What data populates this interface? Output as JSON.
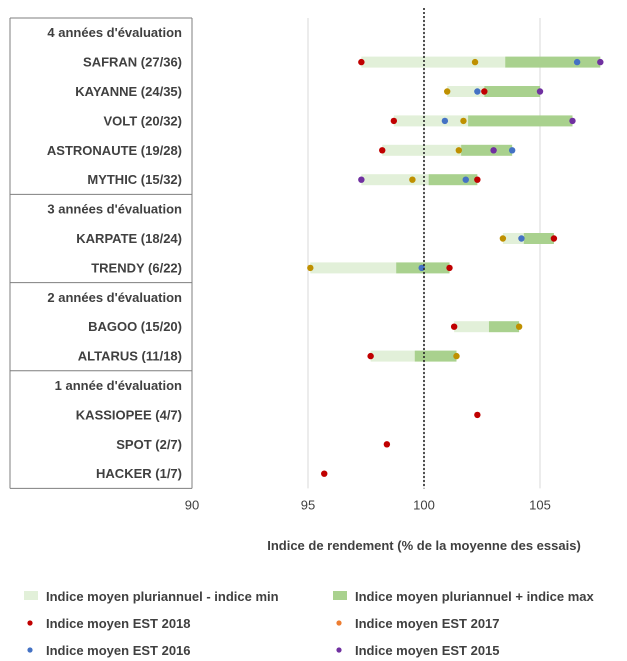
{
  "chart_data": {
    "type": "range-dot",
    "xlabel": "Indice de rendement (% de la moyenne des essais)",
    "xlim": [
      90,
      108
    ],
    "xticks": [
      90,
      95,
      100,
      105
    ],
    "reference_line": 100,
    "grid": "vertical",
    "legend_position": "bottom",
    "colors": {
      "band_min": "#e2f0d9",
      "band_max": "#a9d18e",
      "est2018": "#c00000",
      "est2017": "#bf9000",
      "est2016": "#4472c4",
      "est2015": "#7030a0",
      "est2017_legend": "#ed7d31"
    },
    "legend": [
      {
        "key": "band_min",
        "label": "Indice moyen pluriannuel - indice min"
      },
      {
        "key": "band_max",
        "label": "Indice moyen pluriannuel + indice max"
      },
      {
        "key": "est2018",
        "label": "Indice moyen EST 2018"
      },
      {
        "key": "est2017",
        "label": "Indice moyen EST 2017"
      },
      {
        "key": "est2016",
        "label": "Indice moyen EST  2016"
      },
      {
        "key": "est2015",
        "label": "Indice moyen EST 2015"
      }
    ],
    "groups": [
      {
        "label": "4 années d'évaluation",
        "rows": [
          {
            "label": "SAFRAN (27/36)",
            "min": 97.3,
            "mean": 103.5,
            "max": 107.6,
            "est2018": 97.3,
            "est2017": 102.2,
            "est2016": 106.6,
            "est2015": 107.6
          },
          {
            "label": "KAYANNE (24/35)",
            "min": 101.0,
            "mean": 102.6,
            "max": 105.0,
            "est2018": 102.6,
            "est2017": 101.0,
            "est2016": 102.3,
            "est2015": 105.0
          },
          {
            "label": "VOLT (20/32)",
            "min": 98.7,
            "mean": 101.9,
            "max": 106.4,
            "est2018": 98.7,
            "est2017": 101.7,
            "est2016": 100.9,
            "est2015": 106.4
          },
          {
            "label": "ASTRONAUTE (19/28)",
            "min": 98.2,
            "mean": 101.6,
            "max": 103.8,
            "est2018": 98.2,
            "est2017": 101.5,
            "est2016": 103.8,
            "est2015": 103.0
          },
          {
            "label": "MYTHIC (15/32)",
            "min": 97.3,
            "mean": 100.2,
            "max": 102.3,
            "est2018": 102.3,
            "est2017": 99.5,
            "est2016": 101.8,
            "est2015": 97.3
          }
        ]
      },
      {
        "label": "3 années d'évaluation",
        "rows": [
          {
            "label": "KARPATE (18/24)",
            "min": 103.4,
            "mean": 104.3,
            "max": 105.6,
            "est2018": 105.6,
            "est2017": 103.4,
            "est2016": 104.2
          },
          {
            "label": "TRENDY (6/22)",
            "min": 95.1,
            "mean": 98.8,
            "max": 101.1,
            "est2018": 101.1,
            "est2017": 95.1,
            "est2016": 99.9
          }
        ]
      },
      {
        "label": "2 années d'évaluation",
        "rows": [
          {
            "label": "BAGOO (15/20)",
            "min": 101.3,
            "mean": 102.8,
            "max": 104.1,
            "est2018": 101.3,
            "est2017": 104.1
          },
          {
            "label": "ALTARUS (11/18)",
            "min": 97.7,
            "mean": 99.6,
            "max": 101.4,
            "est2018": 97.7,
            "est2017": 101.4
          }
        ]
      },
      {
        "label": "1 année d'évaluation",
        "rows": [
          {
            "label": "KASSIOPEE (4/7)",
            "est2018": 102.3
          },
          {
            "label": "SPOT (2/7)",
            "est2018": 98.4
          },
          {
            "label": "HACKER (1/7)",
            "est2018": 95.7
          }
        ]
      }
    ]
  }
}
